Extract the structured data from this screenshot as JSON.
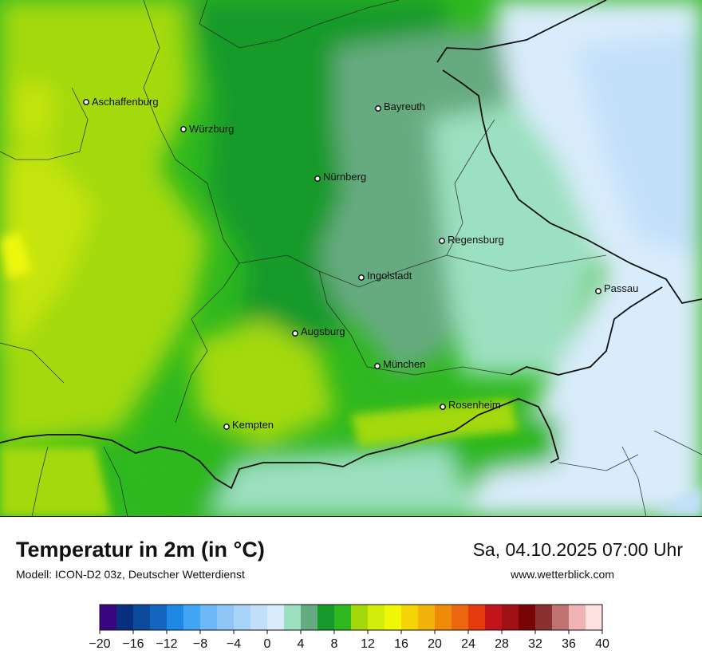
{
  "title": "Temperatur in 2m (in °C)",
  "model": "Modell: ICON-D2 03z, Deutscher Wetterdienst",
  "datetime": "Sa, 04.10.2025 07:00 Uhr",
  "website": "www.wetterblick.com",
  "cities": [
    {
      "name": "Aschaffenburg"
    },
    {
      "name": "Würzburg"
    },
    {
      "name": "Bayreuth"
    },
    {
      "name": "Nürnberg"
    },
    {
      "name": "Regensburg"
    },
    {
      "name": "Ingolstadt"
    },
    {
      "name": "Passau"
    },
    {
      "name": "Augsburg"
    },
    {
      "name": "München"
    },
    {
      "name": "Rosenheim"
    },
    {
      "name": "Kempten"
    }
  ],
  "legend": {
    "min": -20,
    "max": 40,
    "step": 2,
    "tick_labels": [
      "−20",
      "−16",
      "−12",
      "−8",
      "−4",
      "0",
      "4",
      "8",
      "12",
      "16",
      "20",
      "24",
      "28",
      "32",
      "36",
      "40"
    ],
    "colors": [
      "#3a0580",
      "#06307e",
      "#0b4a9a",
      "#1565c0",
      "#1e88e5",
      "#42a5f5",
      "#6fb8f8",
      "#8fc6f7",
      "#a9d4fa",
      "#c3e0fa",
      "#d9ecfb",
      "#9be0c0",
      "#66aa80",
      "#189a2b",
      "#2fb81f",
      "#a3d90a",
      "#d4ec09",
      "#f0f707",
      "#f4d307",
      "#f2b40a",
      "#f08a0a",
      "#eb6810",
      "#e63b10",
      "#c0161b",
      "#a11014",
      "#7a0306",
      "#8a3030",
      "#c07373",
      "#f0b4b4",
      "#fde1e1"
    ]
  }
}
